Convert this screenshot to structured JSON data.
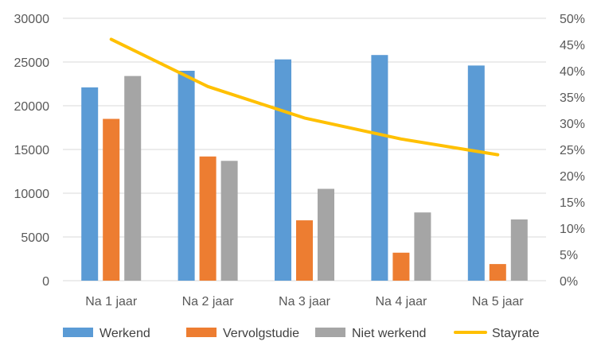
{
  "chart_data": {
    "type": "bar",
    "title": "",
    "xlabel": "",
    "ylabel": "",
    "categories": [
      "Na 1 jaar",
      "Na 2 jaar",
      "Na 3 jaar",
      "Na 4 jaar",
      "Na 5 jaar"
    ],
    "ylim": [
      0,
      30000
    ],
    "y_ticks": [
      "0",
      "5000",
      "10000",
      "15000",
      "20000",
      "25000",
      "30000"
    ],
    "y2lim": [
      0,
      0.5
    ],
    "y2_ticks": [
      "0%",
      "5%",
      "10%",
      "15%",
      "20%",
      "25%",
      "30%",
      "35%",
      "40%",
      "45%",
      "50%"
    ],
    "grid": "horizontal",
    "legend_position": "bottom",
    "series": [
      {
        "name": "Werkend",
        "type": "bar",
        "axis": "left",
        "color": "#5b9bd5",
        "values": [
          22100,
          24000,
          25300,
          25800,
          24600
        ]
      },
      {
        "name": "Vervolgstudie",
        "type": "bar",
        "axis": "left",
        "color": "#ed7d31",
        "values": [
          18500,
          14200,
          6900,
          3200,
          1900
        ]
      },
      {
        "name": "Niet werkend",
        "type": "bar",
        "axis": "left",
        "color": "#a5a5a5",
        "values": [
          23400,
          13700,
          10500,
          7800,
          7000
        ]
      },
      {
        "name": "Stayrate",
        "type": "line",
        "axis": "right",
        "color": "#ffc000",
        "values": [
          0.46,
          0.37,
          0.31,
          0.27,
          0.24
        ]
      }
    ]
  }
}
